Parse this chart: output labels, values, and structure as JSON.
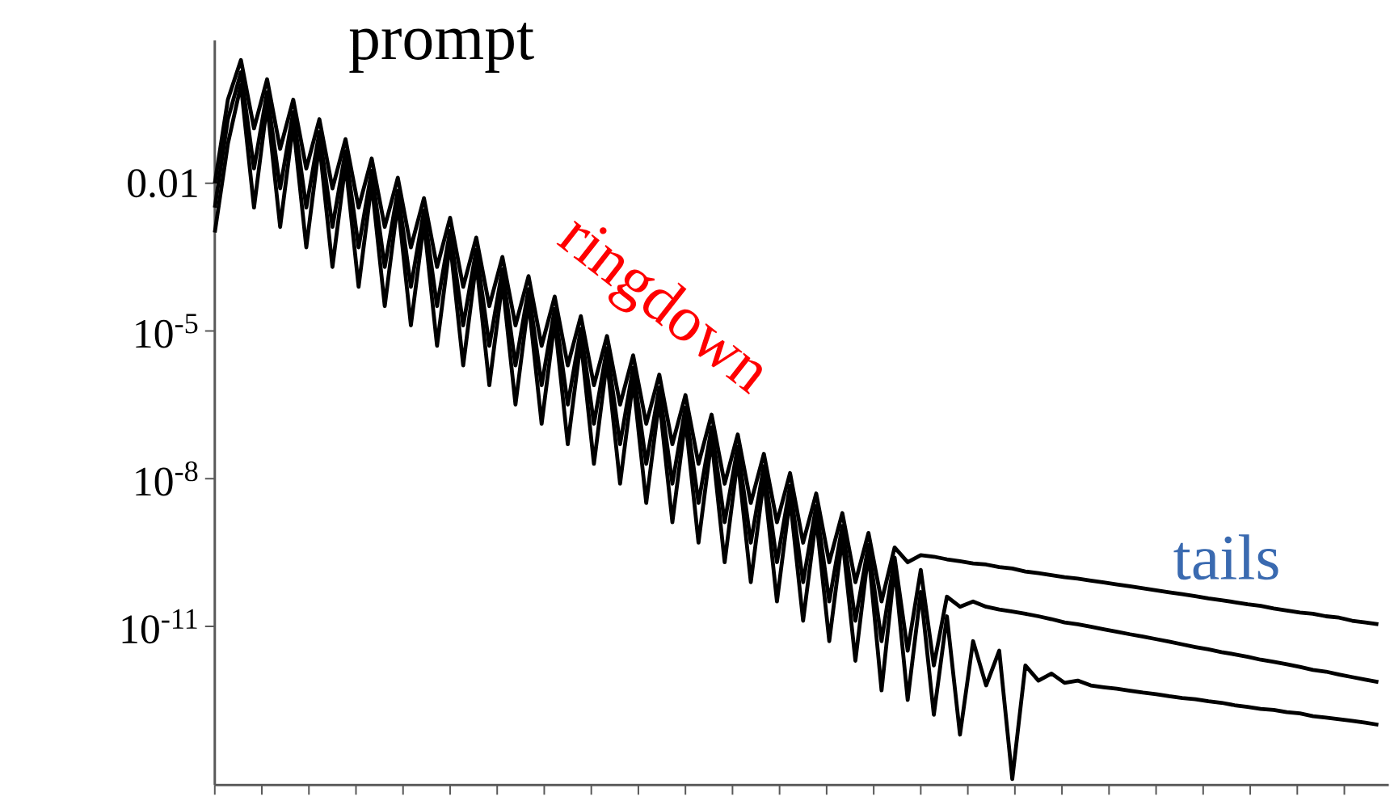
{
  "chart_data": {
    "type": "line",
    "log": true,
    "tick_labels": "y",
    "ylim": [
      6e-15,
      8
    ],
    "yticks": [
      {
        "value": 0.01,
        "label": "0.01"
      },
      {
        "value": 1e-05,
        "label": "10$^{-5}$"
      },
      {
        "value": 1e-08,
        "label": "10$^{-8}$"
      },
      {
        "value": 1e-11,
        "label": "10$^{-11}$"
      }
    ],
    "categories": [
      null,
      null,
      null,
      null,
      null,
      null,
      null,
      null,
      null,
      null,
      null,
      null,
      null,
      null,
      null,
      null,
      null,
      null,
      null,
      null,
      null,
      null,
      null,
      null,
      null,
      null,
      null,
      null,
      null,
      null,
      null,
      null,
      null,
      null,
      null,
      null,
      null,
      null,
      null,
      null,
      null,
      null,
      null,
      null,
      null,
      null,
      null,
      null,
      null,
      null,
      null,
      null,
      null,
      null,
      null,
      null,
      null,
      null,
      null,
      null,
      null,
      null,
      null,
      null,
      null,
      null,
      null,
      null,
      null,
      null,
      null,
      null,
      null,
      null,
      null,
      null,
      null,
      null,
      null,
      null,
      null,
      null,
      null,
      null,
      null,
      null,
      null,
      null,
      null,
      null
    ],
    "annotations": [
      "prompt",
      "ringdown",
      "tails"
    ],
    "series": [
      {
        "color": "#000000",
        "values": [
          0.01,
          0.5,
          3.2,
          0.13,
          1.3,
          0.05,
          0.5,
          0.02,
          0.2,
          0.0079,
          0.079,
          0.0032,
          0.032,
          0.0013,
          0.013,
          0.0005,
          0.005,
          0.0002,
          0.002,
          7.9e-05,
          0.00079,
          3.2e-05,
          0.00032,
          1.3e-05,
          0.00013,
          5e-06,
          5e-05,
          2e-06,
          2e-05,
          7.9e-07,
          7.9e-06,
          3.2e-07,
          3.2e-06,
          1.3e-07,
          1.3e-06,
          5e-08,
          5e-07,
          2e-08,
          2e-07,
          7.9e-09,
          7.9e-08,
          3.2e-09,
          3.2e-08,
          1.3e-09,
          1.3e-08,
          5e-10,
          5e-09,
          2e-10,
          2e-09,
          7.9e-11,
          7.9e-10,
          3.2e-11,
          4e-10,
          2e-10,
          2.8e-10,
          2.6e-10,
          2.3e-10,
          2.1e-10,
          1.9e-10,
          1.8e-10,
          1.6e-10,
          1.5e-10,
          1.3e-10,
          1.2e-10,
          1.1e-10,
          1e-10,
          9.3e-11,
          8.5e-11,
          7.8e-11,
          7.1e-11,
          6.5e-11,
          5.9e-11,
          5.4e-11,
          4.9e-11,
          4.5e-11,
          4.1e-11,
          3.7e-11,
          3.4e-11,
          3.1e-11,
          2.8e-11,
          2.6e-11,
          2.3e-11,
          2.1e-11,
          1.9e-11,
          1.8e-11,
          1.6e-11,
          1.5e-11,
          1.3e-11,
          1.2e-11,
          1.1e-11
        ]
      },
      {
        "color": "#000000",
        "values": [
          0.0032,
          0.2,
          1.8,
          0.02,
          0.71,
          0.0079,
          0.28,
          0.0032,
          0.11,
          0.0013,
          0.045,
          0.0005,
          0.018,
          0.0002,
          0.0071,
          7.9e-05,
          0.0028,
          3.2e-05,
          0.0011,
          1.3e-05,
          0.00045,
          5e-06,
          0.00018,
          2e-06,
          7.1e-05,
          7.9e-07,
          2.8e-05,
          3.2e-07,
          1.1e-05,
          1.3e-07,
          4.5e-06,
          5e-08,
          1.8e-06,
          2e-08,
          7.1e-07,
          7.9e-09,
          2.8e-07,
          3.2e-09,
          1.1e-07,
          1.3e-09,
          4.5e-08,
          5e-10,
          1.8e-08,
          2e-10,
          7.1e-09,
          7.9e-11,
          2.8e-09,
          3.2e-11,
          1.1e-09,
          1.3e-11,
          4.5e-10,
          5e-12,
          2.5e-10,
          3.2e-12,
          1.4e-10,
          1.6e-12,
          4e-11,
          2.5e-11,
          3.2e-11,
          2.5e-11,
          2.2e-11,
          2e-11,
          1.8e-11,
          1.6e-11,
          1.4e-11,
          1.2e-11,
          1.1e-11,
          9.8e-12,
          8.7e-12,
          7.8e-12,
          6.9e-12,
          6.2e-12,
          5.5e-12,
          4.9e-12,
          4.3e-12,
          3.8e-12,
          3.4e-12,
          3e-12,
          2.7e-12,
          2.4e-12,
          2.1e-12,
          1.9e-12,
          1.7e-12,
          1.5e-12,
          1.3e-12,
          1.2e-12,
          1.05e-12,
          9.3e-13,
          8.3e-13,
          7.4e-13
        ]
      },
      {
        "color": "#000000",
        "values": [
          0.001,
          0.063,
          1,
          0.0032,
          0.4,
          0.0013,
          0.16,
          0.0005,
          0.063,
          0.0002,
          0.025,
          7.9e-05,
          0.01,
          3.2e-05,
          0.004,
          1.3e-05,
          0.0016,
          5e-06,
          0.00063,
          2e-06,
          0.00025,
          7.9e-07,
          0.0001,
          3.2e-07,
          4e-05,
          1.3e-07,
          1.6e-05,
          5e-08,
          6.3e-06,
          2e-08,
          2.5e-06,
          7.9e-09,
          1e-06,
          3.2e-09,
          4e-07,
          1.3e-09,
          1.6e-07,
          5e-10,
          6.3e-08,
          2e-10,
          2.5e-08,
          7.9e-11,
          1e-08,
          3.2e-11,
          4e-09,
          1.3e-11,
          1.6e-09,
          5e-12,
          6.3e-10,
          2e-12,
          3.2e-10,
          5e-13,
          1.6e-10,
          3.2e-13,
          5e-11,
          1.6e-13,
          1.6e-11,
          6.3e-14,
          5e-12,
          6.3e-13,
          3.2e-12,
          7.9e-15,
          1.6e-12,
          7.9e-13,
          1.1e-12,
          7.1e-13,
          7.9e-13,
          6.3e-13,
          5.8e-13,
          5.4e-13,
          4.9e-13,
          4.5e-13,
          4.2e-13,
          3.8e-13,
          3.5e-13,
          3.3e-13,
          3e-13,
          2.8e-13,
          2.5e-13,
          2.3e-13,
          2.1e-13,
          2e-13,
          1.8e-13,
          1.7e-13,
          1.5e-13,
          1.4e-13,
          1.3e-13,
          1.2e-13,
          1.1e-13,
          1e-13
        ]
      }
    ]
  }
}
